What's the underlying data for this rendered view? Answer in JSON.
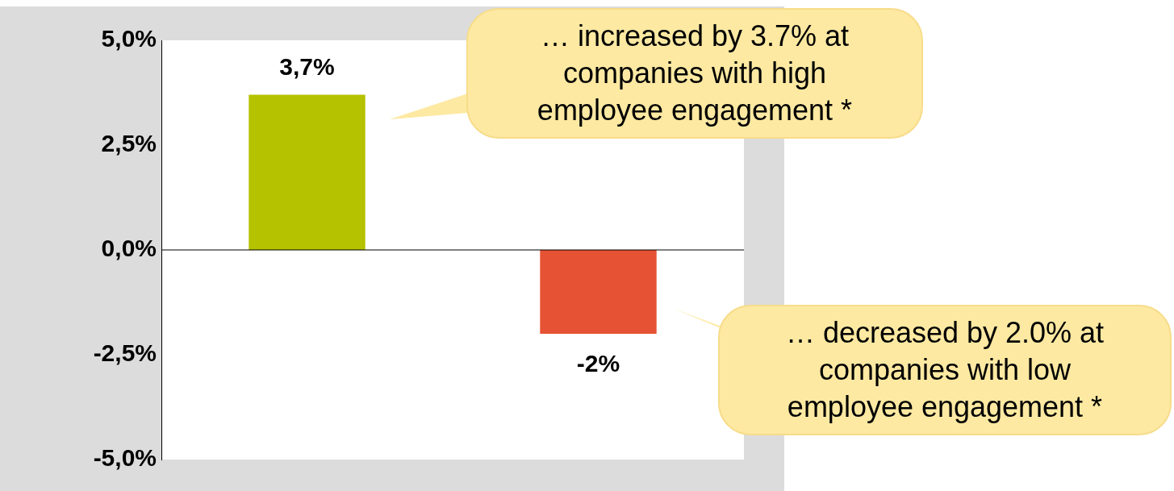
{
  "chart_data": {
    "type": "bar",
    "categories": [
      null,
      null
    ],
    "values": [
      3.7,
      -2.0
    ],
    "colors": [
      "#b5c200",
      "#e55234"
    ],
    "value_labels": [
      "3,7%",
      "-2%"
    ],
    "ylim": [
      -5,
      5
    ],
    "yticks": [
      {
        "value": -5,
        "label": "-5,0%"
      },
      {
        "value": -2.5,
        "label": "-2,5%"
      },
      {
        "value": 0,
        "label": "0,0%"
      },
      {
        "value": 2.5,
        "label": "2,5%"
      },
      {
        "value": 5,
        "label": "5,0%"
      }
    ],
    "grid": false,
    "ref_lines": [
      {
        "axis": "y",
        "value": 0,
        "color": "#000000"
      }
    ],
    "annotations": [
      "… increased by 3.7% at companies with high employee engagement *",
      "… decreased by 2.0% at companies with low employee engagement *"
    ]
  }
}
